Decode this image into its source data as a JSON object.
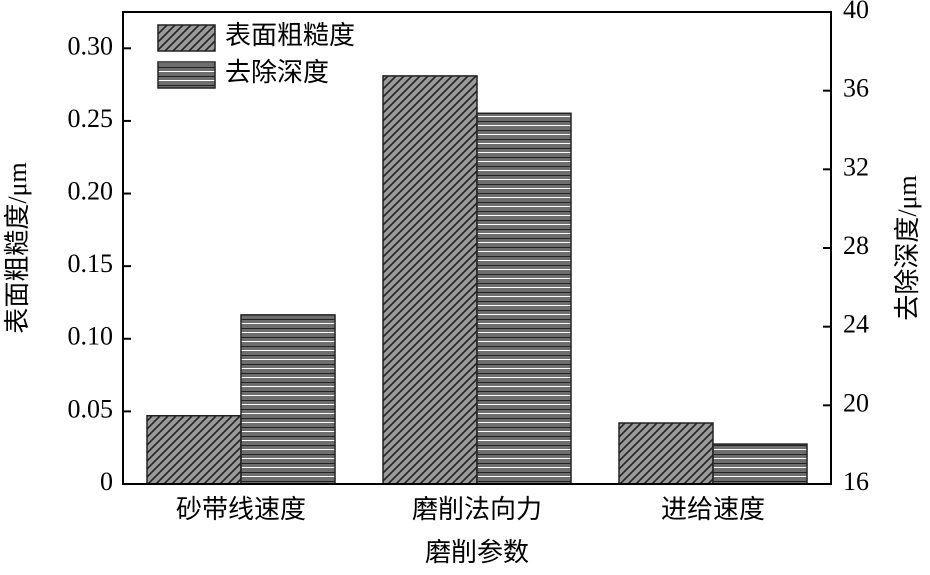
{
  "chart_data": {
    "type": "bar",
    "x_label": "磨削参数",
    "y_label": "表面粗糙度/μm",
    "y2_label": "去除深度/μm",
    "categories": [
      "砂带线速度",
      "磨削法向力",
      "进给速度"
    ],
    "series": [
      {
        "name": "表面粗糙度",
        "color": "#9a9a9a",
        "pattern": "diagonal",
        "values": [
          0.047,
          0.281,
          0.042
        ]
      },
      {
        "name": "去除深度",
        "color": "#6e6e6e",
        "pattern": "horizontal",
        "axis": "y2",
        "values": [
          24.6,
          34.85,
          18.03
        ]
      }
    ],
    "ylim": [
      0,
      0.325
    ],
    "yticks": [
      0,
      0.05,
      {
        "value": 0.1,
        "label": "0.10"
      },
      0.15,
      {
        "value": 0.2,
        "label": "0.20"
      },
      0.25,
      {
        "value": 0.3,
        "label": "0.30"
      }
    ],
    "y2lim": [
      16,
      40
    ],
    "y2ticks": [
      16,
      20,
      24,
      28,
      32,
      36,
      40
    ],
    "legend": "upper-left"
  }
}
